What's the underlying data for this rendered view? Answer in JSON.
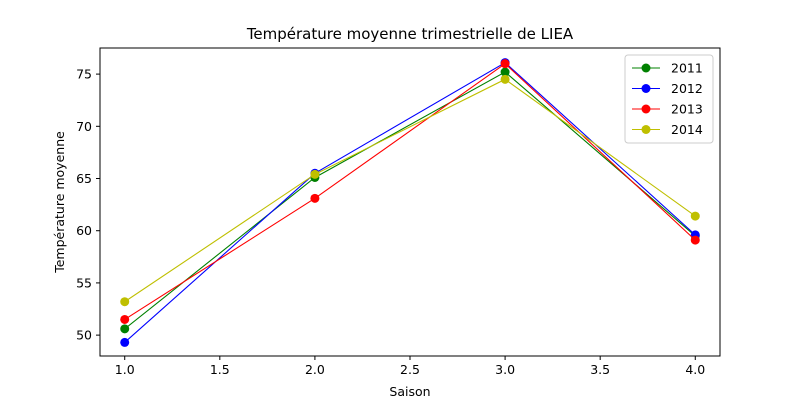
{
  "chart_data": {
    "type": "line",
    "title": "Température moyenne trimestrielle de LIEA",
    "xlabel": "Saison",
    "ylabel": "Température moyenne",
    "xlim": [
      0.87,
      4.13
    ],
    "ylim": [
      48.0,
      77.5
    ],
    "x_ticks": [
      1.0,
      1.5,
      2.0,
      2.5,
      3.0,
      3.5,
      4.0
    ],
    "x_tick_labels": [
      "1.0",
      "1.5",
      "2.0",
      "2.5",
      "3.0",
      "3.5",
      "4.0"
    ],
    "y_ticks": [
      50,
      55,
      60,
      65,
      70,
      75
    ],
    "y_tick_labels": [
      "50",
      "55",
      "60",
      "65",
      "70",
      "75"
    ],
    "grid": false,
    "legend_position": "top-right",
    "x": [
      1,
      2,
      3,
      4
    ],
    "series": [
      {
        "name": "2011",
        "color": "#008000",
        "values": [
          50.6,
          65.1,
          75.2,
          59.5
        ]
      },
      {
        "name": "2012",
        "color": "#0000ff",
        "values": [
          49.3,
          65.5,
          76.1,
          59.6
        ]
      },
      {
        "name": "2013",
        "color": "#ff0000",
        "values": [
          51.5,
          63.1,
          76.0,
          59.1
        ]
      },
      {
        "name": "2014",
        "color": "#bfbf00",
        "values": [
          53.2,
          65.4,
          74.5,
          61.4
        ]
      }
    ]
  }
}
